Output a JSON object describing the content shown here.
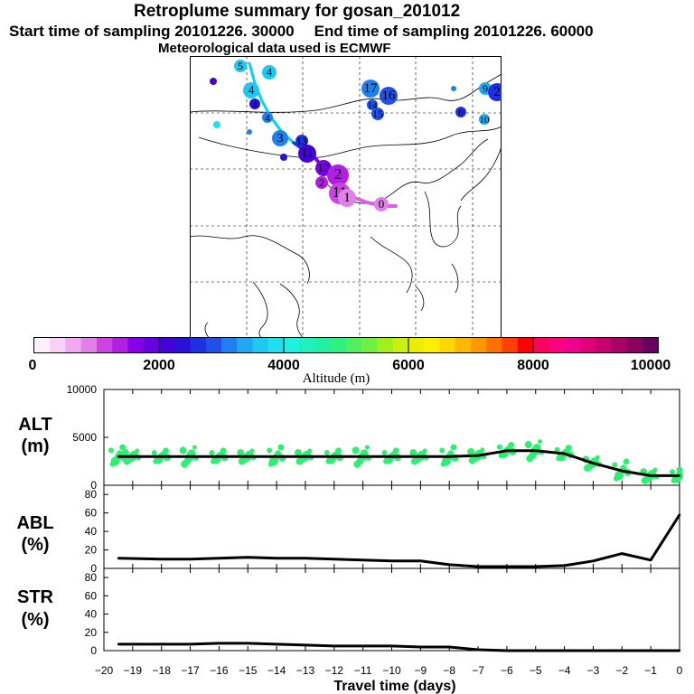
{
  "header": {
    "title": "Retroplume summary for gosan_201012",
    "start_label": "Start time of sampling 20101226. 30000",
    "end_label": "End time of sampling 20101226. 60000",
    "met_label": "Meteorological data used is ECMWF"
  },
  "map": {
    "plume_labels": [
      "0",
      "1",
      "2",
      "3",
      "4",
      "5",
      "6",
      "7",
      "8",
      "9",
      "10",
      "11",
      "12",
      "13",
      "14",
      "15",
      "16",
      "17"
    ],
    "colors": {
      "coast": "#000000",
      "path": "#00d8e8"
    }
  },
  "colorbar": {
    "ticks": [
      "0",
      "2000",
      "4000",
      "6000",
      "8000",
      "10000"
    ],
    "title": "Altitude (m)",
    "colors": [
      "#fff0ff",
      "#f8d0f8",
      "#f0a8f0",
      "#e080e8",
      "#cc44e0",
      "#b020e0",
      "#8800e8",
      "#6600e0",
      "#4400d8",
      "#2a10d8",
      "#2030e0",
      "#2050e8",
      "#2080f0",
      "#20a8f0",
      "#20c8f0",
      "#20e0f0",
      "#20f0e0",
      "#20f0c0",
      "#20f0a0",
      "#30f080",
      "#50f060",
      "#70f040",
      "#a0f020",
      "#c8f010",
      "#e8f000",
      "#fff000",
      "#ffd800",
      "#ffb800",
      "#ff9800",
      "#ff7000",
      "#ff4000",
      "#ff0000",
      "#ff0060",
      "#ff0080",
      "#f00090",
      "#e0007a",
      "#c8006e",
      "#a80066",
      "#880060",
      "#680060"
    ]
  },
  "panels": {
    "alt_label": "ALT\n(m)",
    "abl_label": "ABL\n(%)",
    "str_label": "STR\n(%)",
    "xlabel": "Travel time (days)"
  },
  "chart_data": [
    {
      "type": "line",
      "name": "ALT",
      "ylabel": "ALT (m)",
      "ylim": [
        0,
        10000
      ],
      "yticks": [
        0,
        5000,
        10000
      ],
      "xlim": [
        -20,
        0
      ],
      "x": [
        -19.5,
        -19,
        -18,
        -17,
        -16,
        -15,
        -14,
        -13,
        -12,
        -11,
        -10,
        -9,
        -8,
        -7,
        -6,
        -5,
        -4,
        -3,
        -2,
        -1,
        0
      ],
      "values": [
        3000,
        3000,
        3000,
        3000,
        3000,
        3000,
        3000,
        3000,
        3000,
        3000,
        3000,
        3000,
        3000,
        3100,
        3600,
        3600,
        3300,
        2300,
        1500,
        1000,
        1000
      ],
      "scatter_color": "#2ef070"
    },
    {
      "type": "line",
      "name": "ABL",
      "ylabel": "ABL (%)",
      "ylim": [
        0,
        90
      ],
      "yticks": [
        0,
        20,
        40,
        60,
        80
      ],
      "xlim": [
        -20,
        0
      ],
      "x": [
        -19.5,
        -18,
        -17,
        -16,
        -15,
        -14,
        -13,
        -12,
        -11,
        -10,
        -9,
        -8,
        -7,
        -6,
        -5,
        -4,
        -3,
        -2,
        -1,
        0
      ],
      "values": [
        11,
        10,
        10,
        11,
        12,
        11,
        11,
        10,
        9,
        8,
        8,
        4,
        2,
        2,
        2,
        3,
        8,
        16,
        9,
        58
      ]
    },
    {
      "type": "line",
      "name": "STR",
      "ylabel": "STR (%)",
      "ylim": [
        0,
        90
      ],
      "yticks": [
        0,
        20,
        40,
        60,
        80
      ],
      "xlim": [
        -20,
        0
      ],
      "xticks": [
        "−20",
        "−19",
        "−18",
        "−17",
        "−16",
        "−15",
        "−14",
        "−13",
        "−12",
        "−11",
        "−10",
        "−9",
        "−8",
        "−7",
        "−6",
        "−5",
        "−4",
        "−3",
        "−2",
        "−1",
        "0"
      ],
      "xlabel": "Travel time (days)",
      "x": [
        -19.5,
        -18,
        -17,
        -16,
        -15,
        -14,
        -13,
        -12,
        -11,
        -10,
        -9,
        -8,
        -7,
        -6,
        -5,
        -4,
        -3,
        -2,
        -1,
        0
      ],
      "values": [
        7,
        7,
        7,
        8,
        8,
        7,
        6,
        5,
        5,
        5,
        4,
        4,
        1,
        0,
        0,
        0,
        0,
        0,
        0,
        0
      ]
    }
  ]
}
